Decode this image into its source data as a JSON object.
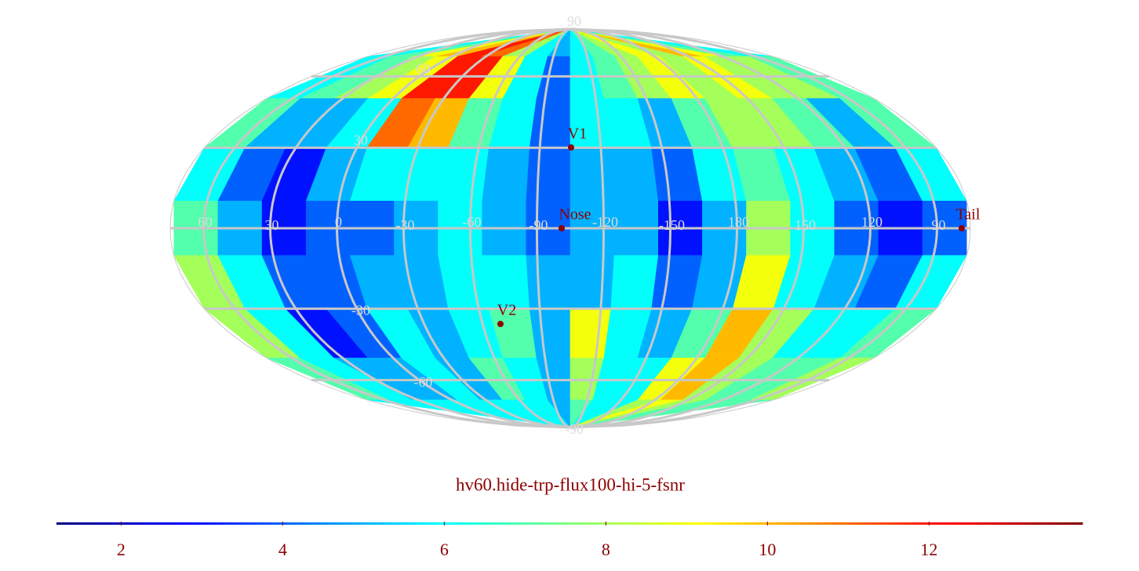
{
  "chart_data": {
    "type": "heatmap",
    "title": "hv60.hide-trp-flux100-hi-5-fsnr",
    "xticks": [
      60,
      30,
      0,
      -30,
      -60,
      -90,
      -120,
      -150,
      180,
      150,
      120,
      90
    ],
    "yticks": [
      90,
      60,
      30,
      -30,
      -60,
      -90
    ],
    "markers": [
      {
        "label": "V1"
      },
      {
        "label": "Nose"
      },
      {
        "label": "V2"
      },
      {
        "label": "Tail"
      }
    ],
    "zlim": [
      1.2,
      13.9
    ],
    "zticks": [
      2,
      4,
      6,
      8,
      10,
      12
    ],
    "grid": true,
    "values": [
      [
        6,
        7,
        9,
        10,
        12,
        11,
        8,
        6,
        5,
        6,
        7,
        8,
        9,
        8,
        10,
        9,
        7,
        6
      ],
      [
        6,
        7,
        8,
        9,
        12,
        12,
        9,
        6,
        4,
        6,
        7,
        8,
        9,
        8,
        9,
        8,
        8,
        7
      ],
      [
        7,
        5,
        5,
        6,
        11,
        10,
        7,
        6,
        4,
        6,
        6,
        5,
        7,
        8,
        8,
        7,
        5,
        7
      ],
      [
        6,
        4,
        3,
        5,
        6,
        6,
        6,
        5,
        4,
        5,
        5,
        4,
        6,
        7,
        6,
        5,
        4,
        6
      ],
      [
        7,
        5,
        3,
        4,
        4,
        5,
        6,
        5,
        4,
        5,
        5,
        3,
        5,
        8,
        6,
        4,
        3,
        4
      ],
      [
        8,
        6,
        4,
        4,
        5,
        5,
        6,
        6,
        5,
        5,
        6,
        4,
        5,
        9,
        6,
        5,
        4,
        6
      ],
      [
        8,
        6,
        3,
        4,
        6,
        5,
        6,
        7,
        5,
        9,
        6,
        5,
        7,
        10,
        8,
        6,
        6,
        7
      ],
      [
        7,
        6,
        5,
        5,
        6,
        5,
        7,
        6,
        5,
        8,
        6,
        6,
        9,
        10,
        8,
        7,
        7,
        8
      ],
      [
        6,
        6,
        6,
        6,
        6,
        6,
        6,
        6,
        5,
        7,
        6,
        6,
        8,
        9,
        8,
        7,
        7,
        7
      ]
    ]
  }
}
